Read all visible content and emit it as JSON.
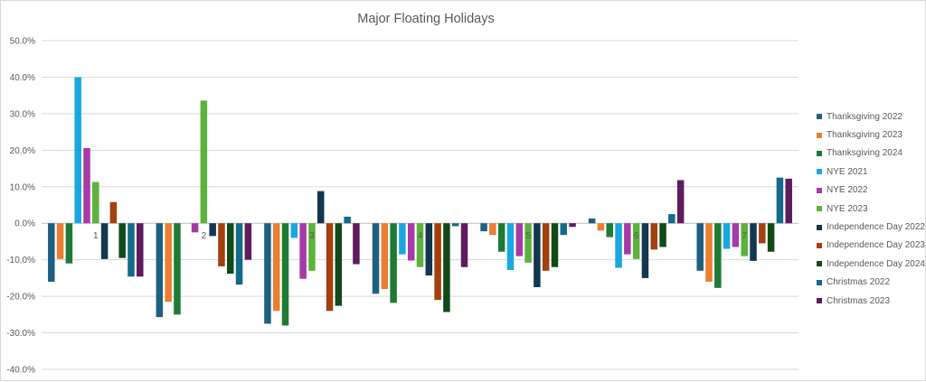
{
  "chart_data": {
    "type": "bar",
    "title": "Major Floating Holidays",
    "xlabel": "",
    "ylabel": "",
    "ylim": [
      -0.4,
      0.5
    ],
    "y_ticks": [
      0.5,
      0.4,
      0.3,
      0.2,
      0.1,
      0.0,
      -0.1,
      -0.2,
      -0.3,
      -0.4
    ],
    "y_tick_labels": [
      "50.0%",
      "40.0%",
      "30.0%",
      "20.0%",
      "10.0%",
      "0.0%",
      "-10.0%",
      "-20.0%",
      "-30.0%",
      "-40.0%"
    ],
    "categories": [
      "1",
      "2",
      "3",
      "4",
      "5",
      "6",
      "7"
    ],
    "grid": true,
    "legend_position": "right",
    "series": [
      {
        "name": "Thanksgiving 2022",
        "color": "#1f5f7f",
        "values": [
          -0.16,
          -0.257,
          -0.275,
          -0.193,
          -0.022,
          0.013,
          -0.13
        ]
      },
      {
        "name": "Thanksgiving 2023",
        "color": "#ed7d31",
        "values": [
          -0.098,
          -0.215,
          -0.24,
          -0.18,
          -0.032,
          -0.02,
          -0.16
        ]
      },
      {
        "name": "Thanksgiving 2024",
        "color": "#1e7a34",
        "values": [
          -0.11,
          -0.25,
          -0.28,
          -0.218,
          -0.078,
          -0.038,
          -0.177
        ]
      },
      {
        "name": "NYE 2021",
        "color": "#1aa7e0",
        "values": [
          0.4,
          0.0,
          -0.04,
          -0.085,
          -0.128,
          -0.122,
          -0.07
        ]
      },
      {
        "name": "NYE 2022",
        "color": "#a63aa6",
        "values": [
          0.206,
          -0.025,
          -0.152,
          -0.102,
          -0.09,
          -0.085,
          -0.065
        ]
      },
      {
        "name": "NYE 2023",
        "color": "#5cb23c",
        "values": [
          0.113,
          0.336,
          -0.13,
          -0.12,
          -0.108,
          -0.098,
          -0.09
        ]
      },
      {
        "name": "Independence Day 2022",
        "color": "#13374f",
        "values": [
          -0.098,
          -0.035,
          0.088,
          -0.143,
          -0.175,
          -0.15,
          -0.103
        ]
      },
      {
        "name": "Independence Day 2023",
        "color": "#a2400e",
        "values": [
          0.058,
          -0.118,
          -0.24,
          -0.21,
          -0.13,
          -0.072,
          -0.055
        ]
      },
      {
        "name": "Independence Day 2024",
        "color": "#114a18",
        "values": [
          -0.095,
          -0.138,
          -0.226,
          -0.243,
          -0.12,
          -0.065,
          -0.078
        ]
      },
      {
        "name": "Christmas 2022",
        "color": "#136a8a",
        "values": [
          -0.146,
          -0.168,
          0.018,
          -0.008,
          -0.032,
          0.025,
          0.125
        ]
      },
      {
        "name": "Christmas 2023",
        "color": "#5e1b5e",
        "values": [
          -0.146,
          -0.1,
          -0.112,
          -0.12,
          -0.01,
          0.118,
          0.122
        ]
      }
    ]
  }
}
